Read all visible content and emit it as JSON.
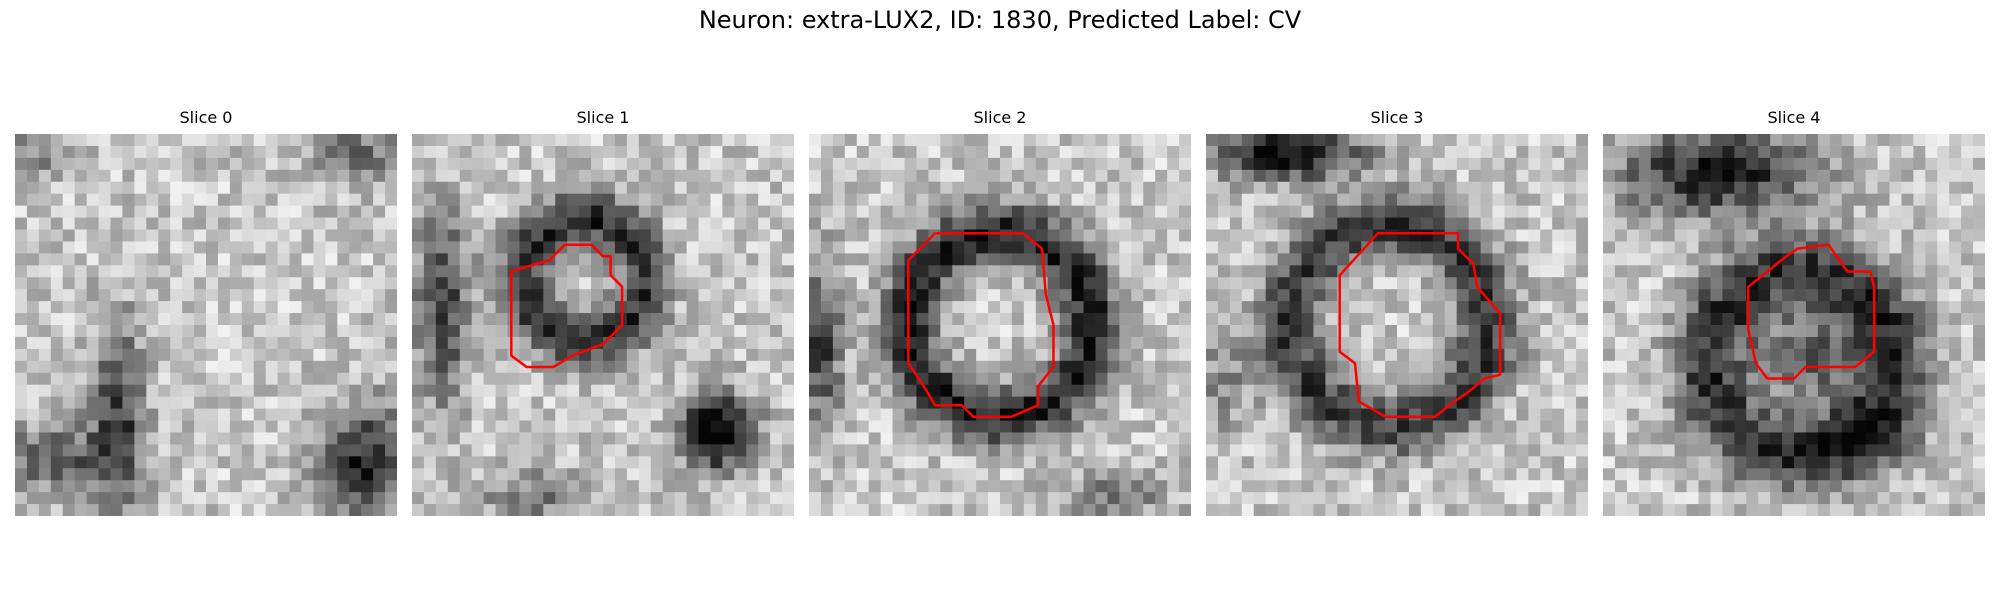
{
  "figure": {
    "title": "Neuron: extra-LUX2, ID: 1830, Predicted Label: CV"
  },
  "slices": [
    {
      "title": "Slice 0",
      "has_outline": false
    },
    {
      "title": "Slice 1",
      "has_outline": true
    },
    {
      "title": "Slice 2",
      "has_outline": true
    },
    {
      "title": "Slice 3",
      "has_outline": true
    },
    {
      "title": "Slice 4",
      "has_outline": true
    }
  ],
  "colors": {
    "outline": "#ff0000",
    "background": "#ffffff"
  }
}
